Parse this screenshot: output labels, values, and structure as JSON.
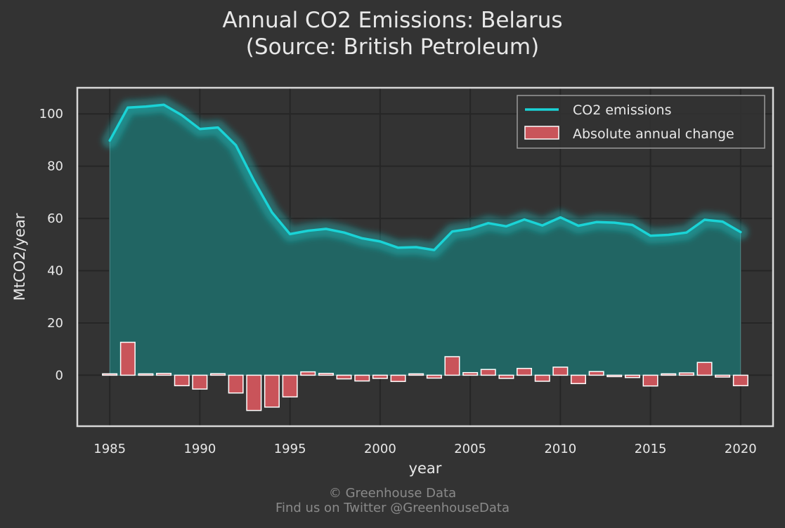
{
  "title": "Annual CO2 Emissions: Belarus",
  "subtitle": "(Source: British Petroleum)",
  "footer": {
    "line1": "© Greenhouse Data",
    "line2": "Find us on Twitter @GreenhouseData"
  },
  "colors": {
    "background": "#333333",
    "line": "#1ad3d6",
    "fill": "#216866",
    "bar": "#c9545a",
    "bar_edge": "#ffffff",
    "grid": "#262626",
    "text": "#e8e8e8"
  },
  "chart_data": {
    "type": "line",
    "xlabel": "year",
    "ylabel": "MtCO2/year",
    "xlim": [
      1983.2,
      2021.8
    ],
    "ylim": [
      -19.5,
      110
    ],
    "x_ticks": [
      1985,
      1990,
      1995,
      2000,
      2005,
      2010,
      2015,
      2020
    ],
    "y_ticks": [
      0,
      20,
      40,
      60,
      80,
      100
    ],
    "grid": true,
    "legend_position": "top-right",
    "x": [
      1985,
      1986,
      1987,
      1988,
      1989,
      1990,
      1991,
      1992,
      1993,
      1994,
      1995,
      1996,
      1997,
      1998,
      1999,
      2000,
      2001,
      2002,
      2003,
      2004,
      2005,
      2006,
      2007,
      2008,
      2009,
      2010,
      2011,
      2012,
      2013,
      2014,
      2015,
      2016,
      2017,
      2018,
      2019,
      2020
    ],
    "series": [
      {
        "name": "CO2 emissions",
        "kind": "line",
        "values": [
          89.8,
          102.4,
          102.8,
          103.5,
          99.5,
          94.2,
          94.8,
          88.0,
          74.5,
          62.3,
          54.0,
          55.3,
          56.0,
          54.6,
          52.4,
          51.2,
          48.8,
          49.0,
          47.9,
          55.0,
          56.0,
          58.2,
          57.0,
          59.6,
          57.3,
          60.4,
          57.2,
          58.6,
          58.4,
          57.5,
          53.4,
          53.7,
          54.6,
          59.5,
          58.8,
          54.8
        ]
      },
      {
        "name": "Absolute annual change",
        "kind": "bar",
        "values": [
          0,
          12.6,
          0.4,
          0.7,
          -4.0,
          -5.3,
          0.6,
          -6.8,
          -13.5,
          -12.2,
          -8.3,
          1.3,
          0.7,
          -1.4,
          -2.2,
          -1.2,
          -2.4,
          0.2,
          -1.1,
          7.1,
          1.0,
          2.2,
          -1.2,
          2.6,
          -2.3,
          3.1,
          -3.2,
          1.4,
          -0.2,
          -0.9,
          -4.1,
          0.3,
          0.9,
          4.9,
          -0.7,
          -4.0
        ]
      }
    ]
  }
}
